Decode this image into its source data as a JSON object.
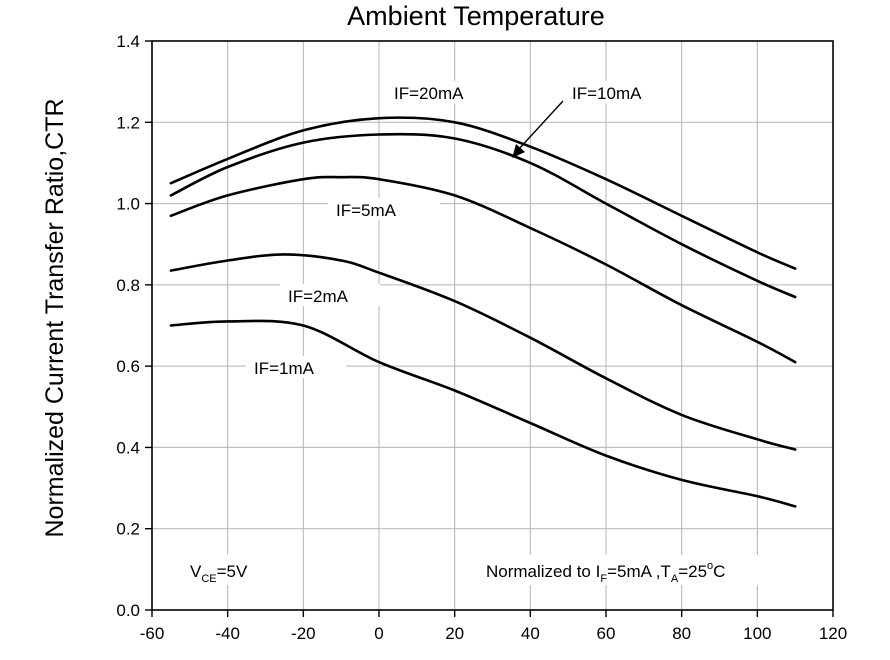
{
  "chart_data": {
    "type": "line",
    "title": "Ambient Temperature",
    "xlabel": "",
    "ylabel": "Normalized Current Transfer Ratio,CTR",
    "xlim": [
      -60,
      120
    ],
    "ylim": [
      0.0,
      1.4
    ],
    "xticks": [
      -60,
      -40,
      -20,
      0,
      20,
      40,
      60,
      80,
      100,
      120
    ],
    "yticks": [
      0.0,
      0.2,
      0.4,
      0.6,
      0.8,
      1.0,
      1.2,
      1.4
    ],
    "xtick_labels": [
      "-60",
      "-40",
      "-20",
      "0",
      "20",
      "40",
      "60",
      "80",
      "100",
      "120"
    ],
    "ytick_labels": [
      "0.0",
      "0.2",
      "0.4",
      "0.6",
      "0.8",
      "1.0",
      "1.2",
      "1.4"
    ],
    "grid": true,
    "series": [
      {
        "name": "IF=20mA",
        "x": [
          -55,
          -40,
          -20,
          0,
          20,
          40,
          60,
          80,
          100,
          110
        ],
        "y": [
          1.05,
          1.11,
          1.18,
          1.21,
          1.2,
          1.14,
          1.06,
          0.97,
          0.88,
          0.84
        ]
      },
      {
        "name": "IF=10mA",
        "x": [
          -55,
          -40,
          -20,
          0,
          20,
          40,
          60,
          80,
          100,
          110
        ],
        "y": [
          1.02,
          1.09,
          1.15,
          1.17,
          1.16,
          1.1,
          1.0,
          0.9,
          0.81,
          0.77
        ]
      },
      {
        "name": "IF=5mA",
        "x": [
          -55,
          -40,
          -20,
          -10,
          0,
          20,
          40,
          60,
          80,
          100,
          110
        ],
        "y": [
          0.97,
          1.02,
          1.06,
          1.065,
          1.06,
          1.02,
          0.94,
          0.85,
          0.75,
          0.66,
          0.61
        ]
      },
      {
        "name": "IF=2mA",
        "x": [
          -55,
          -40,
          -25,
          -10,
          0,
          20,
          40,
          60,
          80,
          100,
          110
        ],
        "y": [
          0.835,
          0.86,
          0.875,
          0.86,
          0.83,
          0.76,
          0.67,
          0.57,
          0.48,
          0.42,
          0.395
        ]
      },
      {
        "name": "IF=1mA",
        "x": [
          -55,
          -40,
          -20,
          0,
          20,
          40,
          60,
          80,
          100,
          110
        ],
        "y": [
          0.7,
          0.71,
          0.7,
          0.61,
          0.54,
          0.46,
          0.38,
          0.32,
          0.28,
          0.255
        ]
      }
    ],
    "annotations": {
      "if20": "IF=20mA",
      "if10": "IF=10mA",
      "if5": "IF=5mA",
      "if2": "IF=2mA",
      "if1": "IF=1mA",
      "vce_main": "V",
      "vce_sub": "CE",
      "vce_val": "=5V",
      "norm_a": "Normalized to I",
      "norm_b": "F",
      "norm_c": "=5mA ,T",
      "norm_d": "A",
      "norm_e": "=25",
      "norm_f": "o",
      "norm_g": "C"
    }
  }
}
